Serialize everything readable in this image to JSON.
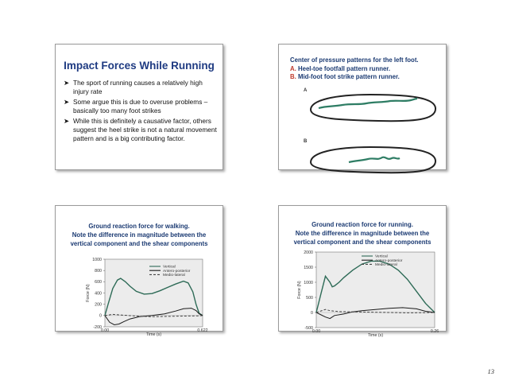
{
  "page_number": "13",
  "slide1": {
    "title": "Impact Forces While Running",
    "bullets": [
      "The sport of running causes a relatively high injury rate",
      "Some argue this is due to overuse problems – basically too many foot strikes",
      "While this is definitely a causative factor, others suggest the heel strike is not a natural movement pattern and is a big contributing factor."
    ]
  },
  "slide2": {
    "heading": "Center of pressure patterns for the left foot.",
    "item_a_letter": "A.",
    "item_a_text": "Heel-toe footfall pattern runner.",
    "item_b_letter": "B.",
    "item_b_text": "Mid-foot foot strike pattern runner.",
    "label_a": "A",
    "label_b": "B",
    "colors": {
      "footprint": "#222222",
      "path": "#2e7d64"
    }
  },
  "slide3": {
    "title_line1": "Ground reaction force for walking.",
    "title_line2": "Note the difference in magnitude between the",
    "title_line3": "vertical component and the shear components"
  },
  "slide4": {
    "title_line1": "Ground reaction force for running.",
    "title_line2": "Note the difference in magnitude between the",
    "title_line3": "vertical component and the shear components"
  },
  "chart_data": [
    {
      "type": "line",
      "xlabel": "Time (s)",
      "ylabel": "Force (N)",
      "xticks": [
        "0.00",
        "0.622"
      ],
      "yticks": [
        "1000",
        "800",
        "600",
        "400",
        "200",
        "0",
        "-200"
      ],
      "xlim": [
        0,
        0.622
      ],
      "ylim": [
        -200,
        1000
      ],
      "legend": "top-right",
      "series": [
        {
          "name": "Vertical",
          "style": "solid",
          "color": "#2e6b57",
          "x": [
            0,
            0.02,
            0.05,
            0.08,
            0.1,
            0.13,
            0.16,
            0.2,
            0.25,
            0.3,
            0.35,
            0.4,
            0.45,
            0.5,
            0.53,
            0.56,
            0.58,
            0.6,
            0.622
          ],
          "y": [
            0,
            200,
            480,
            630,
            660,
            600,
            520,
            430,
            380,
            390,
            440,
            500,
            560,
            610,
            580,
            420,
            200,
            40,
            0
          ]
        },
        {
          "name": "Antero-posterior",
          "style": "solid",
          "color": "#1a1a1a",
          "x": [
            0,
            0.03,
            0.06,
            0.09,
            0.12,
            0.16,
            0.22,
            0.3,
            0.38,
            0.45,
            0.5,
            0.55,
            0.58,
            0.6,
            0.622
          ],
          "y": [
            0,
            -120,
            -165,
            -150,
            -110,
            -60,
            -20,
            0,
            30,
            80,
            120,
            130,
            90,
            30,
            0
          ]
        },
        {
          "name": "Medio-lateral",
          "style": "dashed",
          "color": "#444444",
          "x": [
            0,
            0.05,
            0.1,
            0.2,
            0.3,
            0.4,
            0.5,
            0.6,
            0.622
          ],
          "y": [
            0,
            20,
            10,
            -10,
            -20,
            -15,
            -10,
            -5,
            0
          ]
        }
      ]
    },
    {
      "type": "line",
      "xlabel": "Time (s)",
      "ylabel": "Force (N)",
      "xticks": [
        "0.00",
        "0.26"
      ],
      "yticks": [
        "2000",
        "1500",
        "1000",
        "500",
        "0",
        "-500"
      ],
      "xlim": [
        0,
        0.26
      ],
      "ylim": [
        -500,
        2000
      ],
      "legend": "top-right",
      "series": [
        {
          "name": "Vertical",
          "style": "solid",
          "color": "#2e6b57",
          "x": [
            0,
            0.01,
            0.02,
            0.03,
            0.035,
            0.04,
            0.05,
            0.06,
            0.08,
            0.1,
            0.12,
            0.14,
            0.16,
            0.18,
            0.2,
            0.22,
            0.24,
            0.26
          ],
          "y": [
            0,
            600,
            1200,
            1000,
            850,
            880,
            1000,
            1150,
            1400,
            1600,
            1700,
            1700,
            1600,
            1400,
            1100,
            700,
            300,
            0
          ]
        },
        {
          "name": "Antero-posterior",
          "style": "solid",
          "color": "#1a1a1a",
          "x": [
            0,
            0.02,
            0.03,
            0.04,
            0.06,
            0.08,
            0.1,
            0.13,
            0.16,
            0.19,
            0.22,
            0.24,
            0.26
          ],
          "y": [
            0,
            -150,
            -200,
            -100,
            -50,
            20,
            60,
            100,
            140,
            160,
            120,
            40,
            0
          ]
        },
        {
          "name": "Medio-lateral",
          "style": "dashed",
          "color": "#444444",
          "x": [
            0,
            0.01,
            0.02,
            0.03,
            0.05,
            0.08,
            0.12,
            0.16,
            0.2,
            0.24,
            0.26
          ],
          "y": [
            0,
            50,
            100,
            60,
            30,
            20,
            10,
            0,
            -10,
            -5,
            0
          ]
        }
      ]
    }
  ]
}
